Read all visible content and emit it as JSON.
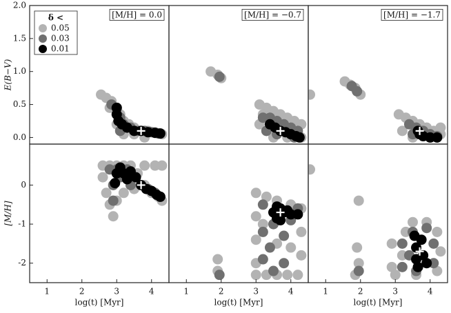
{
  "chart_data": [
    {
      "type": "scatter",
      "annotation": "[M/H] = 0.0",
      "ylabel": "E(B−V)",
      "legend": "upper left",
      "legend_title": "δ <",
      "xlim": [
        0.5,
        4.5
      ],
      "ylim": [
        -0.1,
        2.0
      ],
      "yticks": [
        {
          "value": 0,
          "label": "0.0"
        },
        0.5,
        {
          "value": 1,
          "label": "1.0"
        },
        1.5,
        {
          "value": 2,
          "label": "2.0"
        }
      ],
      "series": [
        {
          "name": "0.05",
          "color": "#b3b3b3",
          "x": [
            2.55,
            2.7,
            2.85,
            2.9,
            3.0,
            3.1,
            3.2,
            3.35,
            3.5,
            3.7,
            3.9,
            4.1,
            4.3,
            2.8,
            3.0,
            3.2,
            3.5,
            3.8
          ],
          "y": [
            0.65,
            0.6,
            0.55,
            0.45,
            0.4,
            0.35,
            0.25,
            0.2,
            0.15,
            0.1,
            0.1,
            0.08,
            0.05,
            0.45,
            0.2,
            0.05,
            0.05,
            0.0
          ]
        },
        {
          "name": "0.03",
          "color": "#707070",
          "x": [
            2.85,
            3.0,
            3.1,
            3.2,
            3.4,
            3.6,
            3.8,
            4.0,
            4.2,
            3.1
          ],
          "y": [
            0.5,
            0.45,
            0.3,
            0.2,
            0.15,
            0.1,
            0.1,
            0.08,
            0.06,
            0.1
          ]
        },
        {
          "name": "0.01",
          "color": "#000000",
          "x": [
            3.0,
            3.0,
            3.05,
            3.15,
            3.3,
            3.5,
            3.7,
            3.9,
            4.1,
            4.25
          ],
          "y": [
            0.45,
            0.35,
            0.25,
            0.2,
            0.15,
            0.1,
            0.1,
            0.08,
            0.07,
            0.06
          ]
        },
        {
          "color": "#ffffff",
          "marker": "+",
          "x": [
            3.7
          ],
          "y": [
            0.1
          ]
        }
      ]
    },
    {
      "type": "scatter",
      "annotation": "[M/H] = −0.7",
      "xlim": [
        0.5,
        4.5
      ],
      "ylim": [
        -0.1,
        2.0
      ],
      "series": [
        {
          "color": "#b3b3b3",
          "x": [
            1.7,
            1.9,
            2.0,
            3.1,
            3.3,
            3.5,
            3.7,
            3.9,
            4.1,
            4.3,
            3.1,
            3.3,
            3.5,
            3.9,
            4.3,
            3.2,
            4.0
          ],
          "y": [
            1.0,
            0.95,
            0.9,
            0.5,
            0.45,
            0.4,
            0.35,
            0.3,
            0.25,
            0.2,
            0.2,
            0.1,
            0.0,
            0.0,
            0.0,
            0.35,
            0.1
          ]
        },
        {
          "color": "#707070",
          "x": [
            1.95,
            3.2,
            3.4,
            3.6,
            3.8,
            4.0,
            4.2,
            3.3,
            3.6,
            4.1
          ],
          "y": [
            0.92,
            0.3,
            0.3,
            0.25,
            0.2,
            0.15,
            0.1,
            0.1,
            0.05,
            0.0
          ]
        },
        {
          "color": "#000000",
          "x": [
            3.4,
            3.55,
            3.7,
            3.85,
            4.0,
            4.15,
            4.25
          ],
          "y": [
            0.2,
            0.15,
            0.1,
            0.08,
            0.05,
            0.02,
            0.0
          ]
        },
        {
          "color": "#ffffff",
          "marker": "+",
          "x": [
            3.7
          ],
          "y": [
            0.1
          ]
        }
      ]
    },
    {
      "type": "scatter",
      "annotation": "[M/H] = −1.7",
      "xlim": [
        0.5,
        4.5
      ],
      "ylim": [
        -0.1,
        2.0
      ],
      "series": [
        {
          "color": "#b3b3b3",
          "x": [
            0.55,
            1.55,
            1.7,
            1.85,
            2.0,
            3.1,
            3.3,
            3.5,
            3.7,
            3.9,
            4.1,
            4.3,
            3.2,
            3.5,
            4.0,
            4.3
          ],
          "y": [
            0.65,
            0.85,
            0.8,
            0.75,
            0.65,
            0.35,
            0.3,
            0.25,
            0.2,
            0.15,
            0.1,
            0.05,
            0.1,
            0.0,
            0.0,
            0.15
          ]
        },
        {
          "color": "#707070",
          "x": [
            1.75,
            1.9,
            3.4,
            3.6,
            3.8,
            4.0,
            4.2,
            3.5
          ],
          "y": [
            0.78,
            0.7,
            0.2,
            0.15,
            0.1,
            0.05,
            0.02,
            0.05
          ]
        },
        {
          "color": "#000000",
          "x": [
            3.65,
            3.7,
            3.8,
            4.0,
            4.2
          ],
          "y": [
            0.1,
            0.05,
            0.02,
            0.0,
            0.0
          ]
        },
        {
          "color": "#ffffff",
          "marker": "+",
          "x": [
            3.7
          ],
          "y": [
            0.1
          ]
        }
      ]
    },
    {
      "type": "scatter",
      "ylabel": "[M/H]",
      "xlabel": "log(t) [Myr]",
      "xlim": [
        0.5,
        4.5
      ],
      "ylim": [
        -2.5,
        1.05
      ],
      "xticks": [
        1,
        2,
        3,
        4
      ],
      "yticks": [
        -2,
        -1,
        0
      ],
      "series": [
        {
          "color": "#b3b3b3",
          "x": [
            2.6,
            2.6,
            2.7,
            2.8,
            2.9,
            3.0,
            2.8,
            3.0,
            3.2,
            3.4,
            3.6,
            3.8,
            4.0,
            4.2,
            4.3,
            3.8,
            4.1,
            4.3,
            3.5,
            3.2
          ],
          "y": [
            0.5,
            0.2,
            -0.2,
            -0.5,
            -0.8,
            -0.4,
            0.5,
            0.5,
            0.5,
            0.5,
            0.3,
            0.0,
            -0.2,
            -0.3,
            -0.4,
            0.5,
            0.5,
            0.5,
            -0.1,
            -0.2
          ]
        },
        {
          "color": "#707070",
          "x": [
            2.8,
            2.9,
            2.9,
            3.0,
            3.3,
            3.5,
            3.7,
            3.9,
            4.1,
            4.25,
            3.1,
            3.4
          ],
          "y": [
            0.4,
            0.0,
            -0.4,
            0.4,
            0.4,
            0.2,
            0.0,
            -0.1,
            -0.2,
            -0.3,
            0.2,
            0.0
          ]
        },
        {
          "color": "#000000",
          "x": [
            2.95,
            3.0,
            3.1,
            3.2,
            3.3,
            3.4,
            3.55,
            3.7,
            3.85,
            4.0,
            4.15,
            4.25
          ],
          "y": [
            0.05,
            0.3,
            0.45,
            0.3,
            0.15,
            0.35,
            0.2,
            0.0,
            -0.1,
            -0.15,
            -0.25,
            -0.3
          ]
        },
        {
          "color": "#ffffff",
          "marker": "+",
          "x": [
            3.7
          ],
          "y": [
            0.0
          ]
        }
      ]
    },
    {
      "type": "scatter",
      "xlabel": "log(t) [Myr]",
      "xlim": [
        0.5,
        4.5
      ],
      "ylim": [
        -2.5,
        1.05
      ],
      "xticks": [
        1,
        2,
        3,
        4
      ],
      "series": [
        {
          "color": "#b3b3b3",
          "x": [
            1.9,
            1.9,
            3.0,
            3.0,
            3.0,
            3.0,
            3.0,
            3.3,
            3.6,
            3.9,
            4.2,
            4.3,
            4.3,
            4.3,
            3.3,
            3.6,
            4.0,
            3.2,
            3.6,
            4.0
          ],
          "y": [
            -1.9,
            -2.2,
            -0.2,
            -0.8,
            -1.4,
            -2.0,
            -2.3,
            -2.3,
            -2.3,
            -2.3,
            -2.3,
            -1.8,
            -1.2,
            -0.6,
            -0.3,
            -0.4,
            -0.5,
            -1.0,
            -1.5,
            -1.6
          ]
        },
        {
          "color": "#707070",
          "x": [
            1.95,
            3.2,
            3.2,
            3.2,
            3.5,
            3.8,
            3.5,
            3.8,
            4.0,
            4.2,
            3.4
          ],
          "y": [
            -2.3,
            -0.5,
            -1.2,
            -1.9,
            -2.2,
            -2.0,
            -1.0,
            -1.3,
            -0.9,
            -0.6,
            -1.6
          ]
        },
        {
          "color": "#000000",
          "x": [
            3.5,
            3.6,
            3.7,
            3.8,
            3.9,
            4.0,
            4.2,
            3.6,
            3.7
          ],
          "y": [
            -0.7,
            -0.55,
            -0.6,
            -0.7,
            -0.65,
            -0.75,
            -0.75,
            -0.85,
            -0.9
          ]
        },
        {
          "color": "#ffffff",
          "marker": "+",
          "x": [
            3.7
          ],
          "y": [
            -0.7
          ]
        }
      ]
    },
    {
      "type": "scatter",
      "xlabel": "log(t) [Myr]",
      "xlim": [
        0.5,
        4.5
      ],
      "ylim": [
        -2.5,
        1.05
      ],
      "xticks": [
        1,
        2,
        3,
        4
      ],
      "series": [
        {
          "color": "#b3b3b3",
          "x": [
            0.55,
            1.95,
            1.9,
            1.95,
            1.85,
            2.9,
            2.9,
            3.0,
            3.3,
            3.5,
            3.9,
            4.2,
            4.3,
            4.2,
            3.6,
            3.2
          ],
          "y": [
            0.4,
            -0.4,
            -1.6,
            -2.0,
            -2.3,
            -1.5,
            -2.1,
            -2.3,
            -1.2,
            -0.95,
            -0.95,
            -1.2,
            -1.7,
            -2.2,
            -2.3,
            -1.8
          ]
        },
        {
          "color": "#707070",
          "x": [
            1.95,
            3.2,
            3.2,
            3.5,
            3.9,
            4.1,
            4.1,
            3.6,
            3.4
          ],
          "y": [
            -2.2,
            -1.5,
            -2.1,
            -1.2,
            -1.1,
            -1.5,
            -2.0,
            -2.2,
            -1.8
          ]
        },
        {
          "color": "#000000",
          "x": [
            3.55,
            3.6,
            3.6,
            3.75,
            3.8,
            3.9,
            3.65
          ],
          "y": [
            -1.3,
            -1.6,
            -1.9,
            -1.4,
            -1.8,
            -2.0,
            -2.1
          ]
        },
        {
          "color": "#ffffff",
          "marker": "+",
          "x": [
            3.7
          ],
          "y": [
            -1.7
          ]
        }
      ]
    }
  ]
}
